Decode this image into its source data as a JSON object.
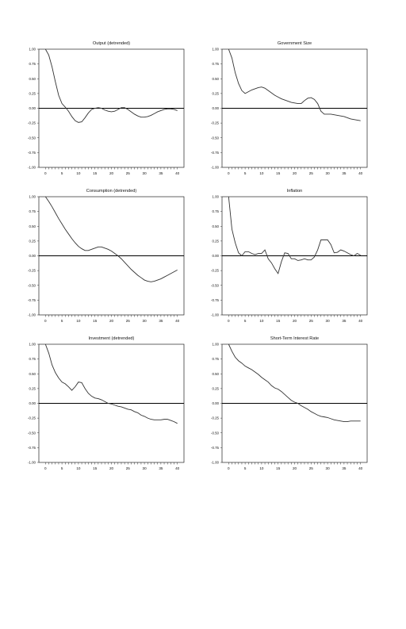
{
  "chart_data": [
    {
      "type": "line",
      "title": "Output (detrended)",
      "xlabel": "",
      "ylabel": "",
      "xlim": [
        -2,
        42
      ],
      "ylim": [
        -1.0,
        1.0
      ],
      "x_ticks": [
        "0",
        "5",
        "10",
        "15",
        "20",
        "25",
        "30",
        "35",
        "40"
      ],
      "y_ticks": [
        "1.00",
        "0.75",
        "0.50",
        "0.25",
        "0.00",
        "-0.25",
        "-0.50",
        "-0.75",
        "-1.00"
      ],
      "grid": false,
      "zero_line": true,
      "series": [
        {
          "x": [
            0,
            1,
            2,
            3,
            4,
            5,
            6,
            7,
            8,
            9,
            10,
            11,
            12,
            13,
            14,
            15,
            16,
            17,
            18,
            19,
            20,
            21,
            22,
            23,
            24,
            25,
            26,
            27,
            28,
            29,
            30,
            31,
            32,
            33,
            34,
            35,
            36,
            37,
            38,
            39,
            40
          ],
          "values": [
            1.0,
            0.9,
            0.7,
            0.45,
            0.22,
            0.08,
            0.02,
            -0.05,
            -0.14,
            -0.21,
            -0.24,
            -0.23,
            -0.16,
            -0.08,
            -0.02,
            0.0,
            0.01,
            0.0,
            -0.03,
            -0.05,
            -0.06,
            -0.05,
            -0.02,
            0.01,
            0.01,
            -0.02,
            -0.06,
            -0.1,
            -0.13,
            -0.15,
            -0.15,
            -0.14,
            -0.12,
            -0.09,
            -0.06,
            -0.04,
            -0.02,
            -0.01,
            -0.01,
            -0.02,
            -0.04
          ]
        }
      ]
    },
    {
      "type": "line",
      "title": "Government Size",
      "xlabel": "",
      "ylabel": "",
      "xlim": [
        -2,
        42
      ],
      "ylim": [
        -1.0,
        1.0
      ],
      "x_ticks": [
        "0",
        "5",
        "10",
        "15",
        "20",
        "25",
        "30",
        "35",
        "40"
      ],
      "y_ticks": [
        "1.00",
        "0.75",
        "0.50",
        "0.25",
        "0.00",
        "-0.25",
        "-0.50",
        "-0.75",
        "-1.00"
      ],
      "grid": false,
      "zero_line": true,
      "series": [
        {
          "x": [
            0,
            1,
            2,
            3,
            4,
            5,
            6,
            7,
            8,
            9,
            10,
            11,
            12,
            13,
            14,
            15,
            16,
            17,
            18,
            19,
            20,
            21,
            22,
            23,
            24,
            25,
            26,
            27,
            28,
            29,
            30,
            31,
            32,
            33,
            34,
            35,
            36,
            37,
            38,
            39,
            40
          ],
          "values": [
            1.0,
            0.85,
            0.6,
            0.42,
            0.3,
            0.25,
            0.28,
            0.31,
            0.33,
            0.35,
            0.36,
            0.34,
            0.3,
            0.26,
            0.22,
            0.19,
            0.16,
            0.14,
            0.12,
            0.1,
            0.09,
            0.08,
            0.08,
            0.13,
            0.17,
            0.18,
            0.15,
            0.08,
            -0.05,
            -0.1,
            -0.1,
            -0.1,
            -0.11,
            -0.12,
            -0.13,
            -0.14,
            -0.16,
            -0.18,
            -0.19,
            -0.2,
            -0.21
          ]
        }
      ]
    },
    {
      "type": "line",
      "title": "Consumption (detrended)",
      "xlabel": "",
      "ylabel": "",
      "xlim": [
        -2,
        42
      ],
      "ylim": [
        -1.0,
        1.0
      ],
      "x_ticks": [
        "0",
        "5",
        "10",
        "15",
        "20",
        "25",
        "30",
        "35",
        "40"
      ],
      "y_ticks": [
        "1.00",
        "0.75",
        "0.50",
        "0.25",
        "0.00",
        "-0.25",
        "-0.50",
        "-0.75",
        "-1.00"
      ],
      "grid": false,
      "zero_line": true,
      "series": [
        {
          "x": [
            0,
            1,
            2,
            3,
            4,
            5,
            6,
            7,
            8,
            9,
            10,
            11,
            12,
            13,
            14,
            15,
            16,
            17,
            18,
            19,
            20,
            21,
            22,
            23,
            24,
            25,
            26,
            27,
            28,
            29,
            30,
            31,
            32,
            33,
            34,
            35,
            36,
            37,
            38,
            39,
            40
          ],
          "values": [
            1.0,
            0.92,
            0.83,
            0.73,
            0.63,
            0.54,
            0.45,
            0.37,
            0.29,
            0.22,
            0.16,
            0.12,
            0.09,
            0.09,
            0.11,
            0.13,
            0.15,
            0.15,
            0.13,
            0.11,
            0.08,
            0.04,
            0.0,
            -0.05,
            -0.11,
            -0.17,
            -0.23,
            -0.28,
            -0.33,
            -0.37,
            -0.41,
            -0.43,
            -0.44,
            -0.43,
            -0.41,
            -0.39,
            -0.36,
            -0.33,
            -0.3,
            -0.27,
            -0.24
          ]
        }
      ]
    },
    {
      "type": "line",
      "title": "Inflation",
      "xlabel": "",
      "ylabel": "",
      "xlim": [
        -2,
        42
      ],
      "ylim": [
        -1.0,
        1.0
      ],
      "x_ticks": [
        "0",
        "5",
        "10",
        "15",
        "20",
        "25",
        "30",
        "35",
        "40"
      ],
      "y_ticks": [
        "1.00",
        "0.75",
        "0.50",
        "0.25",
        "0.00",
        "-0.25",
        "-0.50",
        "-0.75",
        "-1.00"
      ],
      "grid": false,
      "zero_line": true,
      "series": [
        {
          "x": [
            0,
            1,
            2,
            3,
            4,
            5,
            6,
            7,
            8,
            9,
            10,
            11,
            12,
            13,
            14,
            15,
            16,
            17,
            18,
            19,
            20,
            21,
            22,
            23,
            24,
            25,
            26,
            27,
            28,
            29,
            30,
            31,
            32,
            33,
            34,
            35,
            36,
            37,
            38,
            39,
            40
          ],
          "values": [
            1.0,
            0.45,
            0.22,
            0.05,
            0.0,
            0.07,
            0.07,
            0.04,
            0.02,
            0.04,
            0.04,
            0.1,
            -0.05,
            -0.12,
            -0.22,
            -0.3,
            -0.1,
            0.05,
            0.04,
            -0.05,
            -0.05,
            -0.08,
            -0.07,
            -0.05,
            -0.07,
            -0.07,
            -0.02,
            0.1,
            0.27,
            0.27,
            0.27,
            0.19,
            0.05,
            0.06,
            0.1,
            0.08,
            0.05,
            0.02,
            0.0,
            0.04,
            0.01
          ]
        }
      ]
    },
    {
      "type": "line",
      "title": "Investment (detrended)",
      "xlabel": "",
      "ylabel": "",
      "xlim": [
        -2,
        42
      ],
      "ylim": [
        -1.0,
        1.0
      ],
      "x_ticks": [
        "0",
        "5",
        "10",
        "15",
        "20",
        "25",
        "30",
        "35",
        "40"
      ],
      "y_ticks": [
        "1.00",
        "0.75",
        "0.50",
        "0.25",
        "0.00",
        "-0.25",
        "-0.50",
        "-0.75",
        "-1.00"
      ],
      "grid": false,
      "zero_line": true,
      "series": [
        {
          "x": [
            0,
            1,
            2,
            3,
            4,
            5,
            6,
            7,
            8,
            9,
            10,
            11,
            12,
            13,
            14,
            15,
            16,
            17,
            18,
            19,
            20,
            21,
            22,
            23,
            24,
            25,
            26,
            27,
            28,
            29,
            30,
            31,
            32,
            33,
            34,
            35,
            36,
            37,
            38,
            39,
            40
          ],
          "values": [
            1.0,
            0.85,
            0.65,
            0.52,
            0.43,
            0.36,
            0.33,
            0.28,
            0.22,
            0.28,
            0.36,
            0.35,
            0.25,
            0.17,
            0.12,
            0.09,
            0.08,
            0.06,
            0.03,
            0.0,
            -0.01,
            -0.03,
            -0.05,
            -0.06,
            -0.08,
            -0.1,
            -0.11,
            -0.14,
            -0.16,
            -0.2,
            -0.22,
            -0.25,
            -0.27,
            -0.28,
            -0.28,
            -0.28,
            -0.27,
            -0.27,
            -0.29,
            -0.31,
            -0.34
          ]
        }
      ]
    },
    {
      "type": "line",
      "title": "Short-Term Interest Rate",
      "xlabel": "",
      "ylabel": "",
      "xlim": [
        -2,
        42
      ],
      "ylim": [
        -1.0,
        1.0
      ],
      "x_ticks": [
        "0",
        "5",
        "10",
        "15",
        "20",
        "25",
        "30",
        "35",
        "40"
      ],
      "y_ticks": [
        "1.00",
        "0.75",
        "0.50",
        "0.25",
        "0.00",
        "-0.25",
        "-0.50",
        "-0.75",
        "-1.00"
      ],
      "grid": false,
      "zero_line": true,
      "series": [
        {
          "x": [
            0,
            1,
            2,
            3,
            4,
            5,
            6,
            7,
            8,
            9,
            10,
            11,
            12,
            13,
            14,
            15,
            16,
            17,
            18,
            19,
            20,
            21,
            22,
            23,
            24,
            25,
            26,
            27,
            28,
            29,
            30,
            31,
            32,
            33,
            34,
            35,
            36,
            37,
            38,
            39,
            40
          ],
          "values": [
            1.0,
            0.88,
            0.78,
            0.72,
            0.68,
            0.63,
            0.6,
            0.57,
            0.53,
            0.49,
            0.44,
            0.4,
            0.36,
            0.3,
            0.26,
            0.24,
            0.2,
            0.15,
            0.1,
            0.05,
            0.02,
            0.0,
            -0.04,
            -0.07,
            -0.1,
            -0.14,
            -0.17,
            -0.2,
            -0.22,
            -0.23,
            -0.24,
            -0.26,
            -0.28,
            -0.29,
            -0.3,
            -0.31,
            -0.31,
            -0.3,
            -0.3,
            -0.3,
            -0.3
          ]
        }
      ]
    }
  ]
}
